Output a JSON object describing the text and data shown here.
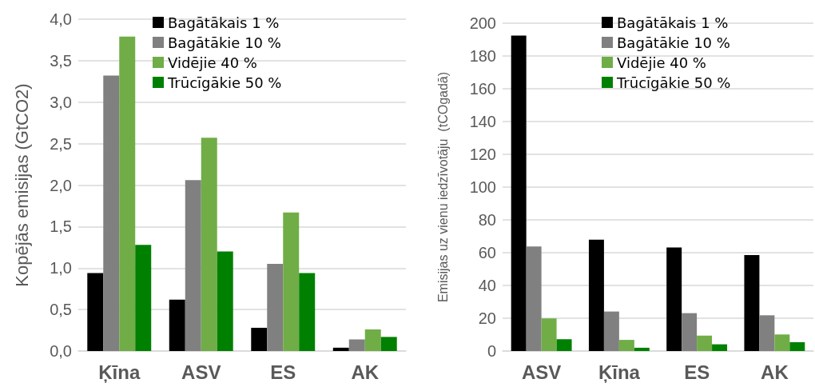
{
  "chart_data": [
    {
      "type": "bar",
      "ylabel": "Kopējās emisijas (GtCO2)",
      "categories": [
        "Ķīna",
        "ASV",
        "ES",
        "AK"
      ],
      "series": [
        {
          "name": "Bagātākais 1 %",
          "color": "#000000",
          "values": [
            0.94,
            0.62,
            0.28,
            0.04
          ]
        },
        {
          "name": "Bagātākie 10 %",
          "color": "#808080",
          "values": [
            3.32,
            2.06,
            1.05,
            0.14
          ]
        },
        {
          "name": "Vidējie 40 %",
          "color": "#70ad47",
          "values": [
            3.79,
            2.57,
            1.67,
            0.26
          ]
        },
        {
          "name": "Trūcīgākie 50 %",
          "color": "#008000",
          "values": [
            1.28,
            1.2,
            0.94,
            0.17
          ]
        }
      ],
      "ylim": [
        0,
        4
      ],
      "yticks": [
        {
          "value": 0,
          "label": "0,0"
        },
        {
          "value": 0.5,
          "label": "0,5"
        },
        {
          "value": 1,
          "label": "1,0"
        },
        {
          "value": 1.5,
          "label": "1,5"
        },
        {
          "value": 2,
          "label": "2,0"
        },
        {
          "value": 2.5,
          "label": "2,5"
        },
        {
          "value": 3,
          "label": "3,0"
        },
        {
          "value": 3.5,
          "label": "3,5"
        },
        {
          "value": 4,
          "label": "4,0"
        }
      ],
      "grid": "y",
      "legend": "top"
    },
    {
      "type": "bar",
      "ylabel": "Emisijas uz vienu iedzīvotāju  (tCOgadā)",
      "categories": [
        "ASV",
        "Ķīna",
        "ES",
        "AK"
      ],
      "series": [
        {
          "name": "Bagātākais 1 %",
          "color": "#000000",
          "values": [
            192.5,
            67.9,
            63.2,
            58.5
          ]
        },
        {
          "name": "Bagātākie 10 %",
          "color": "#808080",
          "values": [
            63.8,
            24.1,
            23.1,
            21.8
          ]
        },
        {
          "name": "Vidējie 40 %",
          "color": "#70ad47",
          "values": [
            19.9,
            6.8,
            9.4,
            10.1
          ]
        },
        {
          "name": "Trūcīgākie 50 %",
          "color": "#008000",
          "values": [
            7.2,
            2,
            4.1,
            5.4
          ]
        }
      ],
      "ylim": [
        0,
        200
      ],
      "yticks": [
        0,
        20,
        40,
        60,
        80,
        100,
        120,
        140,
        160,
        180,
        200
      ],
      "grid": "y",
      "legend": "top right"
    }
  ]
}
